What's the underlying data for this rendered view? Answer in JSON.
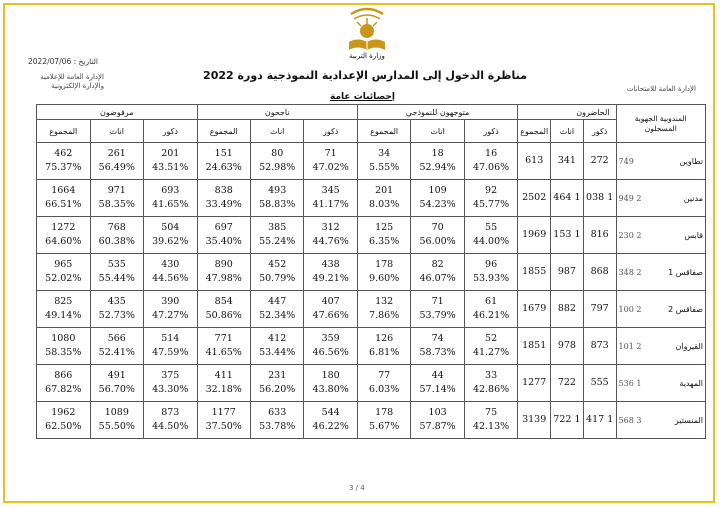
{
  "header": {
    "ministry": "وزارة التربية",
    "date_label": "التاريخ :",
    "date": "2022/07/06",
    "dept_left_1": "الإدارة العامة للإعلامية",
    "dept_left_2": "والإدارة الإلكترونية",
    "dept_right": "الإدارة العامة للامتحانات",
    "title": "مناظرة الدخول إلى المدارس الإعدادية النموذجية  دورة  2022",
    "subtitle": "إحصائيات عامة"
  },
  "table": {
    "region_header": "المندوبية الجهوية",
    "registered_header": "المسجلون",
    "groups": {
      "present": "الحاضرون",
      "oriented": "متوجهون للنموذجي",
      "passed": "ناجحون",
      "failed": "مرفوضون"
    },
    "sub": {
      "male": "ذكور",
      "female": "اناث",
      "total": "المجموع"
    },
    "rows": [
      {
        "region": "تطاوين",
        "registered": "749",
        "present": [
          "272",
          "341",
          "613"
        ],
        "oriented": [
          [
            "16",
            "47.06%"
          ],
          [
            "18",
            "52.94%"
          ],
          [
            "34",
            "5.55%"
          ]
        ],
        "passed": [
          [
            "71",
            "47.02%"
          ],
          [
            "80",
            "52.98%"
          ],
          [
            "151",
            "24.63%"
          ]
        ],
        "failed": [
          [
            "201",
            "43.51%"
          ],
          [
            "261",
            "56.49%"
          ],
          [
            "462",
            "75.37%"
          ]
        ]
      },
      {
        "region": "مدنين",
        "registered": "2 949",
        "present": [
          "1 038",
          "1 464",
          "2502"
        ],
        "oriented": [
          [
            "92",
            "45.77%"
          ],
          [
            "109",
            "54.23%"
          ],
          [
            "201",
            "8.03%"
          ]
        ],
        "passed": [
          [
            "345",
            "41.17%"
          ],
          [
            "493",
            "58.83%"
          ],
          [
            "838",
            "33.49%"
          ]
        ],
        "failed": [
          [
            "693",
            "41.65%"
          ],
          [
            "971",
            "58.35%"
          ],
          [
            "1664",
            "66.51%"
          ]
        ]
      },
      {
        "region": "قابس",
        "registered": "2 230",
        "present": [
          "816",
          "1 153",
          "1969"
        ],
        "oriented": [
          [
            "55",
            "44.00%"
          ],
          [
            "70",
            "56.00%"
          ],
          [
            "125",
            "6.35%"
          ]
        ],
        "passed": [
          [
            "312",
            "44.76%"
          ],
          [
            "385",
            "55.24%"
          ],
          [
            "697",
            "35.40%"
          ]
        ],
        "failed": [
          [
            "504",
            "39.62%"
          ],
          [
            "768",
            "60.38%"
          ],
          [
            "1272",
            "64.60%"
          ]
        ]
      },
      {
        "region": "صفاقس 1",
        "registered": "2 348",
        "present": [
          "868",
          "987",
          "1855"
        ],
        "oriented": [
          [
            "96",
            "53.93%"
          ],
          [
            "82",
            "46.07%"
          ],
          [
            "178",
            "9.60%"
          ]
        ],
        "passed": [
          [
            "438",
            "49.21%"
          ],
          [
            "452",
            "50.79%"
          ],
          [
            "890",
            "47.98%"
          ]
        ],
        "failed": [
          [
            "430",
            "44.56%"
          ],
          [
            "535",
            "55.44%"
          ],
          [
            "965",
            "52.02%"
          ]
        ]
      },
      {
        "region": "صفاقس 2",
        "registered": "2 100",
        "present": [
          "797",
          "882",
          "1679"
        ],
        "oriented": [
          [
            "61",
            "46.21%"
          ],
          [
            "71",
            "53.79%"
          ],
          [
            "132",
            "7.86%"
          ]
        ],
        "passed": [
          [
            "407",
            "47.66%"
          ],
          [
            "447",
            "52.34%"
          ],
          [
            "854",
            "50.86%"
          ]
        ],
        "failed": [
          [
            "390",
            "47.27%"
          ],
          [
            "435",
            "52.73%"
          ],
          [
            "825",
            "49.14%"
          ]
        ]
      },
      {
        "region": "القيروان",
        "registered": "2 101",
        "present": [
          "873",
          "978",
          "1851"
        ],
        "oriented": [
          [
            "52",
            "41.27%"
          ],
          [
            "74",
            "58.73%"
          ],
          [
            "126",
            "6.81%"
          ]
        ],
        "passed": [
          [
            "359",
            "46.56%"
          ],
          [
            "412",
            "53.44%"
          ],
          [
            "771",
            "41.65%"
          ]
        ],
        "failed": [
          [
            "514",
            "47.59%"
          ],
          [
            "566",
            "52.41%"
          ],
          [
            "1080",
            "58.35%"
          ]
        ]
      },
      {
        "region": "المهدية",
        "registered": "1 536",
        "present": [
          "555",
          "722",
          "1277"
        ],
        "oriented": [
          [
            "33",
            "42.86%"
          ],
          [
            "44",
            "57.14%"
          ],
          [
            "77",
            "6.03%"
          ]
        ],
        "passed": [
          [
            "180",
            "43.80%"
          ],
          [
            "231",
            "56.20%"
          ],
          [
            "411",
            "32.18%"
          ]
        ],
        "failed": [
          [
            "375",
            "43.30%"
          ],
          [
            "491",
            "56.70%"
          ],
          [
            "866",
            "67.82%"
          ]
        ]
      },
      {
        "region": "المنستير",
        "registered": "3 568",
        "present": [
          "1 417",
          "1 722",
          "3139"
        ],
        "oriented": [
          [
            "75",
            "42.13%"
          ],
          [
            "103",
            "57.87%"
          ],
          [
            "178",
            "5.67%"
          ]
        ],
        "passed": [
          [
            "544",
            "46.22%"
          ],
          [
            "633",
            "53.78%"
          ],
          [
            "1177",
            "37.50%"
          ]
        ],
        "failed": [
          [
            "873",
            "44.50%"
          ],
          [
            "1089",
            "55.50%"
          ],
          [
            "1962",
            "62.50%"
          ]
        ]
      }
    ]
  },
  "footer": {
    "page": "3 / 4"
  },
  "colors": {
    "frame": "#e8c21a",
    "logo_gold": "#c9961a"
  }
}
